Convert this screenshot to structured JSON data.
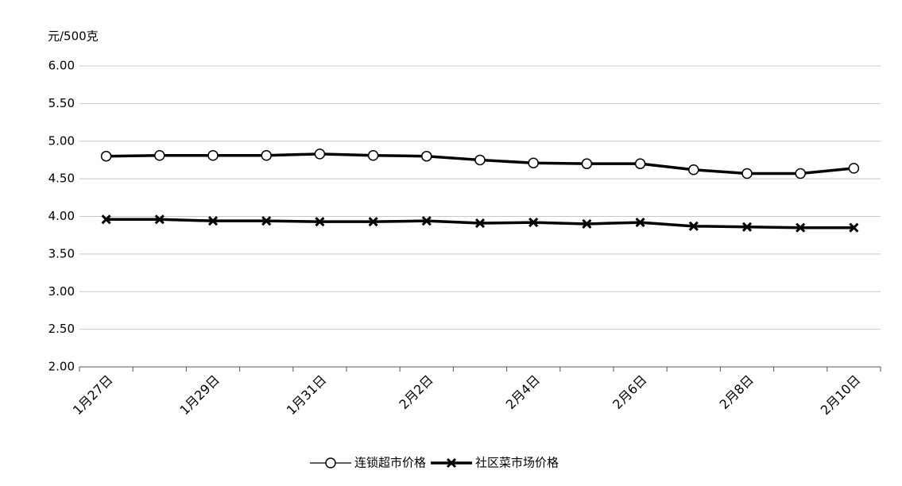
{
  "chart_data": {
    "type": "line",
    "y_label": "元/500克",
    "categories": [
      "1月27日",
      null,
      "1月29日",
      null,
      "1月31日",
      null,
      "2月2日",
      null,
      "2月4日",
      null,
      "2月6日",
      null,
      "2月8日",
      null,
      "2月10日"
    ],
    "series": [
      {
        "name": "连锁超市价格",
        "color": "#000000",
        "marker": "circle",
        "values": [
          4.8,
          4.81,
          4.81,
          4.81,
          4.83,
          4.81,
          4.8,
          4.75,
          4.71,
          4.7,
          4.7,
          4.62,
          4.57,
          4.57,
          4.64
        ]
      },
      {
        "name": "社区菜市场价格",
        "color": "#000000",
        "marker": "x",
        "values": [
          3.96,
          3.96,
          3.94,
          3.94,
          3.93,
          3.93,
          3.94,
          3.91,
          3.92,
          3.9,
          3.92,
          3.87,
          3.86,
          3.85,
          3.85
        ]
      }
    ],
    "ylim": [
      2,
      6
    ],
    "yticks": [
      {
        "value": 2,
        "label": "2.00"
      },
      {
        "value": 2.5,
        "label": "2.50"
      },
      {
        "value": 3,
        "label": "3.00"
      },
      {
        "value": 3.5,
        "label": "3.50"
      },
      {
        "value": 4,
        "label": "4.00"
      },
      {
        "value": 4.5,
        "label": "4.50"
      },
      {
        "value": 5,
        "label": "5.00"
      },
      {
        "value": 5.5,
        "label": "5.50"
      },
      {
        "value": 6,
        "label": "6.00"
      }
    ],
    "grid": true,
    "legend": "bottom"
  }
}
